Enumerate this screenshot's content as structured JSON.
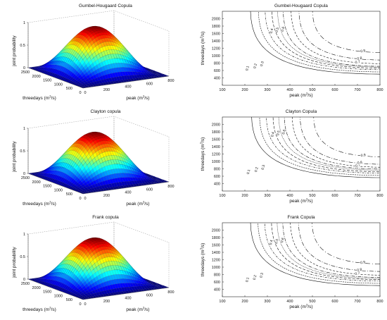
{
  "chart_data": [
    {
      "type": "surface",
      "panel": "3d",
      "title": "Gumbel-Hougaard Copula",
      "xlabel": "threedays (m3/s)",
      "ylabel": "peak (m3/s)",
      "zlabel": "joint probability",
      "x_ticks": [
        "2500",
        "2000",
        "1500",
        "1000",
        "500",
        "0"
      ],
      "y_ticks": [
        "0",
        "200",
        "400",
        "600",
        "800"
      ],
      "z_ticks": [
        "0",
        "0.5",
        "1"
      ],
      "zlim": [
        0,
        1
      ],
      "colormap": "jet"
    },
    {
      "type": "contour",
      "panel": "2d",
      "title": "Gumbel-Hougaard Copula",
      "xlabel": "peak (m3/s)",
      "ylabel": "threedays (m3/s)",
      "xlim": [
        100,
        800
      ],
      "ylim": [
        200,
        2200
      ],
      "x_ticks": [
        "100",
        "200",
        "300",
        "400",
        "500",
        "600",
        "700",
        "800"
      ],
      "y_ticks": [
        "400",
        "600",
        "800",
        "1000",
        "1200",
        "1400",
        "1600",
        "1800",
        "2000"
      ],
      "levels": [
        {
          "label": "0.1",
          "x0": 225,
          "y0": 500,
          "label_side": "left"
        },
        {
          "label": "0.2",
          "x0": 260,
          "y0": 560,
          "label_side": "left"
        },
        {
          "label": "0.3",
          "x0": 290,
          "y0": 620,
          "label_side": "left"
        },
        {
          "label": "0.4",
          "x0": 320,
          "y0": 660,
          "label_side": "top"
        },
        {
          "label": "0.5",
          "x0": 345,
          "y0": 690,
          "label_side": "top"
        },
        {
          "label": "0.6",
          "x0": 370,
          "y0": 710,
          "label_side": "top"
        },
        {
          "label": "0.7",
          "x0": 405,
          "y0": 780,
          "label_side": "right"
        },
        {
          "label": "0.8",
          "x0": 440,
          "y0": 880,
          "label_side": "right"
        },
        {
          "label": "0.9",
          "x0": 500,
          "y0": 1080,
          "label_side": "right"
        }
      ]
    },
    {
      "type": "surface",
      "panel": "3d",
      "title": "Clayton copula",
      "xlabel": "threedays (m3/s)",
      "ylabel": "peak (m3/s)",
      "zlabel": "joint probability",
      "x_ticks": [
        "2500",
        "2000",
        "1500",
        "1000",
        "500",
        "0"
      ],
      "y_ticks": [
        "0",
        "200",
        "400",
        "600",
        "800"
      ],
      "z_ticks": [
        "0",
        "0.5",
        "1"
      ],
      "zlim": [
        0,
        1
      ],
      "colormap": "jet"
    },
    {
      "type": "contour",
      "panel": "2d",
      "title": "Clayton Copula",
      "xlabel": "peak (m3/s)",
      "ylabel": "threedays (m3/s)",
      "xlim": [
        100,
        800
      ],
      "ylim": [
        200,
        2200
      ],
      "x_ticks": [
        "100",
        "200",
        "300",
        "400",
        "500",
        "600",
        "700",
        "800"
      ],
      "y_ticks": [
        "400",
        "600",
        "800",
        "1000",
        "1200",
        "1400",
        "1600",
        "1800",
        "2000"
      ],
      "levels": [
        {
          "label": "0.1",
          "x0": 230,
          "y0": 560,
          "label_side": "left"
        },
        {
          "label": "0.2",
          "x0": 265,
          "y0": 620,
          "label_side": "left"
        },
        {
          "label": "0.3",
          "x0": 295,
          "y0": 680,
          "label_side": "left"
        },
        {
          "label": "0.4",
          "x0": 325,
          "y0": 720,
          "label_side": "top"
        },
        {
          "label": "0.5",
          "x0": 350,
          "y0": 760,
          "label_side": "top"
        },
        {
          "label": "0.6",
          "x0": 375,
          "y0": 790,
          "label_side": "top"
        },
        {
          "label": "0.7",
          "x0": 410,
          "y0": 840,
          "label_side": "right"
        },
        {
          "label": "0.8",
          "x0": 445,
          "y0": 920,
          "label_side": "right"
        },
        {
          "label": "0.9",
          "x0": 505,
          "y0": 1120,
          "label_side": "right"
        }
      ]
    },
    {
      "type": "surface",
      "panel": "3d",
      "title": "Frank copula",
      "xlabel": "threedays (m3/s)",
      "ylabel": "peak (m3/s)",
      "zlabel": "joint probability",
      "x_ticks": [
        "2500",
        "2000",
        "1500",
        "1000",
        "500",
        "0"
      ],
      "y_ticks": [
        "0",
        "200",
        "400",
        "600",
        "800"
      ],
      "z_ticks": [
        "0",
        "0.5",
        "1"
      ],
      "zlim": [
        0,
        1
      ],
      "colormap": "jet"
    },
    {
      "type": "contour",
      "panel": "2d",
      "title": "Frank Copula",
      "xlabel": "peak (m3/s)",
      "ylabel": "threedays (m3/s)",
      "xlim": [
        100,
        800
      ],
      "ylim": [
        200,
        2200
      ],
      "x_ticks": [
        "100",
        "200",
        "300",
        "400",
        "500",
        "600",
        "700",
        "800"
      ],
      "y_ticks": [
        "400",
        "600",
        "800",
        "1000",
        "1200",
        "1400",
        "1600",
        "1800",
        "2000"
      ],
      "levels": [
        {
          "label": "0.1",
          "x0": 225,
          "y0": 500,
          "label_side": "left"
        },
        {
          "label": "0.2",
          "x0": 258,
          "y0": 560,
          "label_side": "left"
        },
        {
          "label": "0.3",
          "x0": 288,
          "y0": 620,
          "label_side": "left"
        },
        {
          "label": "0.4",
          "x0": 318,
          "y0": 660,
          "label_side": "top"
        },
        {
          "label": "0.5",
          "x0": 343,
          "y0": 690,
          "label_side": "top"
        },
        {
          "label": "0.6",
          "x0": 368,
          "y0": 720,
          "label_side": "top"
        },
        {
          "label": "0.7",
          "x0": 402,
          "y0": 780,
          "label_side": "right"
        },
        {
          "label": "0.8",
          "x0": 438,
          "y0": 880,
          "label_side": "right"
        },
        {
          "label": "0.9",
          "x0": 498,
          "y0": 1080,
          "label_side": "right"
        }
      ]
    }
  ]
}
